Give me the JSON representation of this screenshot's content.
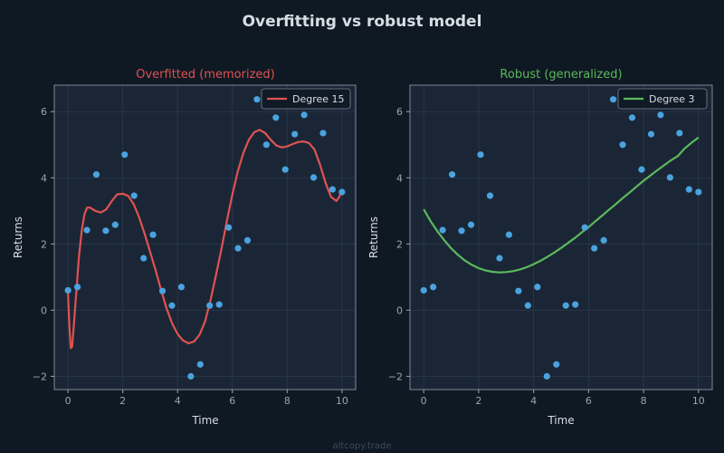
{
  "figure": {
    "title": "Overfitting vs robust model",
    "watermark": "altcopy.trade"
  },
  "colors": {
    "background": "#0f1923",
    "panel": "#1a2636",
    "grid": "#2a3a4c",
    "axis": "#9aa5b1",
    "text": "#d8dde3",
    "points": "#4aa3df",
    "overfit": "#e05252",
    "robust": "#5cb85c"
  },
  "chart_data": [
    {
      "type": "scatter",
      "title": "Overfitted (memorized)",
      "title_color": "#e05252",
      "xlabel": "Time",
      "ylabel": "Returns",
      "xlim": [
        -0.5,
        10.5
      ],
      "ylim": [
        -2.4,
        6.8
      ],
      "xticks": [
        0,
        2,
        4,
        6,
        8,
        10
      ],
      "yticks": [
        -2,
        0,
        2,
        4,
        6
      ],
      "xtick_labels": [
        "0",
        "2",
        "4",
        "6",
        "8",
        "10"
      ],
      "ytick_labels": [
        "−2",
        "0",
        "2",
        "4",
        "6"
      ],
      "grid": true,
      "legend_position": "top-right",
      "points": {
        "x": [
          0.0,
          0.345,
          0.69,
          1.034,
          1.379,
          1.724,
          2.069,
          2.414,
          2.759,
          3.103,
          3.448,
          3.793,
          4.138,
          4.483,
          4.828,
          5.172,
          5.517,
          5.862,
          6.207,
          6.552,
          6.897,
          7.241,
          7.586,
          7.931,
          8.276,
          8.621,
          8.966,
          9.31,
          9.655,
          10.0
        ],
        "y": [
          0.6,
          0.7,
          2.42,
          4.1,
          2.4,
          2.58,
          4.7,
          3.46,
          1.57,
          2.28,
          0.58,
          0.14,
          0.7,
          -2.0,
          -1.64,
          0.14,
          0.17,
          2.5,
          1.87,
          2.11,
          6.37,
          5.0,
          5.82,
          4.25,
          5.32,
          5.9,
          4.01,
          5.35,
          3.65,
          3.57
        ]
      },
      "series": [
        {
          "name": "Degree 15",
          "x": [
            0.0,
            0.05,
            0.1,
            0.15,
            0.2,
            0.3,
            0.4,
            0.5,
            0.6,
            0.7,
            0.8,
            0.9,
            1.0,
            1.2,
            1.4,
            1.6,
            1.8,
            2.0,
            2.2,
            2.4,
            2.6,
            2.8,
            3.0,
            3.2,
            3.4,
            3.6,
            3.8,
            4.0,
            4.2,
            4.4,
            4.6,
            4.8,
            5.0,
            5.2,
            5.4,
            5.6,
            5.8,
            6.0,
            6.2,
            6.4,
            6.6,
            6.8,
            7.0,
            7.2,
            7.4,
            7.6,
            7.8,
            8.0,
            8.2,
            8.4,
            8.6,
            8.8,
            9.0,
            9.2,
            9.4,
            9.6,
            9.8,
            9.9,
            10.0
          ],
          "y": [
            0.55,
            -0.5,
            -1.15,
            -1.1,
            -0.6,
            0.5,
            1.6,
            2.4,
            2.9,
            3.1,
            3.1,
            3.05,
            3.0,
            2.95,
            3.05,
            3.3,
            3.5,
            3.52,
            3.45,
            3.2,
            2.8,
            2.3,
            1.75,
            1.2,
            0.6,
            0.05,
            -0.4,
            -0.72,
            -0.92,
            -1.0,
            -0.95,
            -0.75,
            -0.35,
            0.3,
            1.05,
            1.85,
            2.7,
            3.5,
            4.2,
            4.75,
            5.15,
            5.38,
            5.45,
            5.35,
            5.15,
            4.98,
            4.92,
            4.95,
            5.02,
            5.08,
            5.1,
            5.05,
            4.85,
            4.4,
            3.85,
            3.42,
            3.3,
            3.42,
            3.6
          ]
        }
      ]
    },
    {
      "type": "scatter",
      "title": "Robust (generalized)",
      "title_color": "#5cb85c",
      "xlabel": "Time",
      "ylabel": "Returns",
      "xlim": [
        -0.5,
        10.5
      ],
      "ylim": [
        -2.4,
        6.8
      ],
      "xticks": [
        0,
        2,
        4,
        6,
        8,
        10
      ],
      "yticks": [
        -2,
        0,
        2,
        4,
        6
      ],
      "xtick_labels": [
        "0",
        "2",
        "4",
        "6",
        "8",
        "10"
      ],
      "ytick_labels": [
        "−2",
        "0",
        "2",
        "4",
        "6"
      ],
      "grid": true,
      "legend_position": "top-right",
      "points": {
        "x": [
          0.0,
          0.345,
          0.69,
          1.034,
          1.379,
          1.724,
          2.069,
          2.414,
          2.759,
          3.103,
          3.448,
          3.793,
          4.138,
          4.483,
          4.828,
          5.172,
          5.517,
          5.862,
          6.207,
          6.552,
          6.897,
          7.241,
          7.586,
          7.931,
          8.276,
          8.621,
          8.966,
          9.31,
          9.655,
          10.0
        ],
        "y": [
          0.6,
          0.7,
          2.42,
          4.1,
          2.4,
          2.58,
          4.7,
          3.46,
          1.57,
          2.28,
          0.58,
          0.14,
          0.7,
          -2.0,
          -1.64,
          0.14,
          0.17,
          2.5,
          1.87,
          2.11,
          6.37,
          5.0,
          5.82,
          4.25,
          5.32,
          5.9,
          4.01,
          5.35,
          3.65,
          3.57
        ]
      },
      "series": [
        {
          "name": "Degree 3",
          "x": [
            0.0,
            0.25,
            0.5,
            0.75,
            1.0,
            1.25,
            1.5,
            1.75,
            2.0,
            2.25,
            2.5,
            2.75,
            3.0,
            3.25,
            3.5,
            3.75,
            4.0,
            4.25,
            4.5,
            4.75,
            5.0,
            5.25,
            5.5,
            5.75,
            6.0,
            6.25,
            6.5,
            6.75,
            7.0,
            7.25,
            7.5,
            7.75,
            8.0,
            8.25,
            8.5,
            8.75,
            9.0,
            9.25,
            9.5,
            9.75,
            10.0
          ],
          "y": [
            3.05,
            2.69,
            2.38,
            2.11,
            1.87,
            1.67,
            1.5,
            1.37,
            1.27,
            1.2,
            1.16,
            1.14,
            1.15,
            1.18,
            1.23,
            1.3,
            1.39,
            1.49,
            1.61,
            1.74,
            1.88,
            2.03,
            2.18,
            2.35,
            2.51,
            2.69,
            2.86,
            3.04,
            3.21,
            3.39,
            3.56,
            3.74,
            3.91,
            4.07,
            4.23,
            4.38,
            4.53,
            4.66,
            4.89,
            5.06,
            5.22
          ]
        }
      ]
    }
  ]
}
